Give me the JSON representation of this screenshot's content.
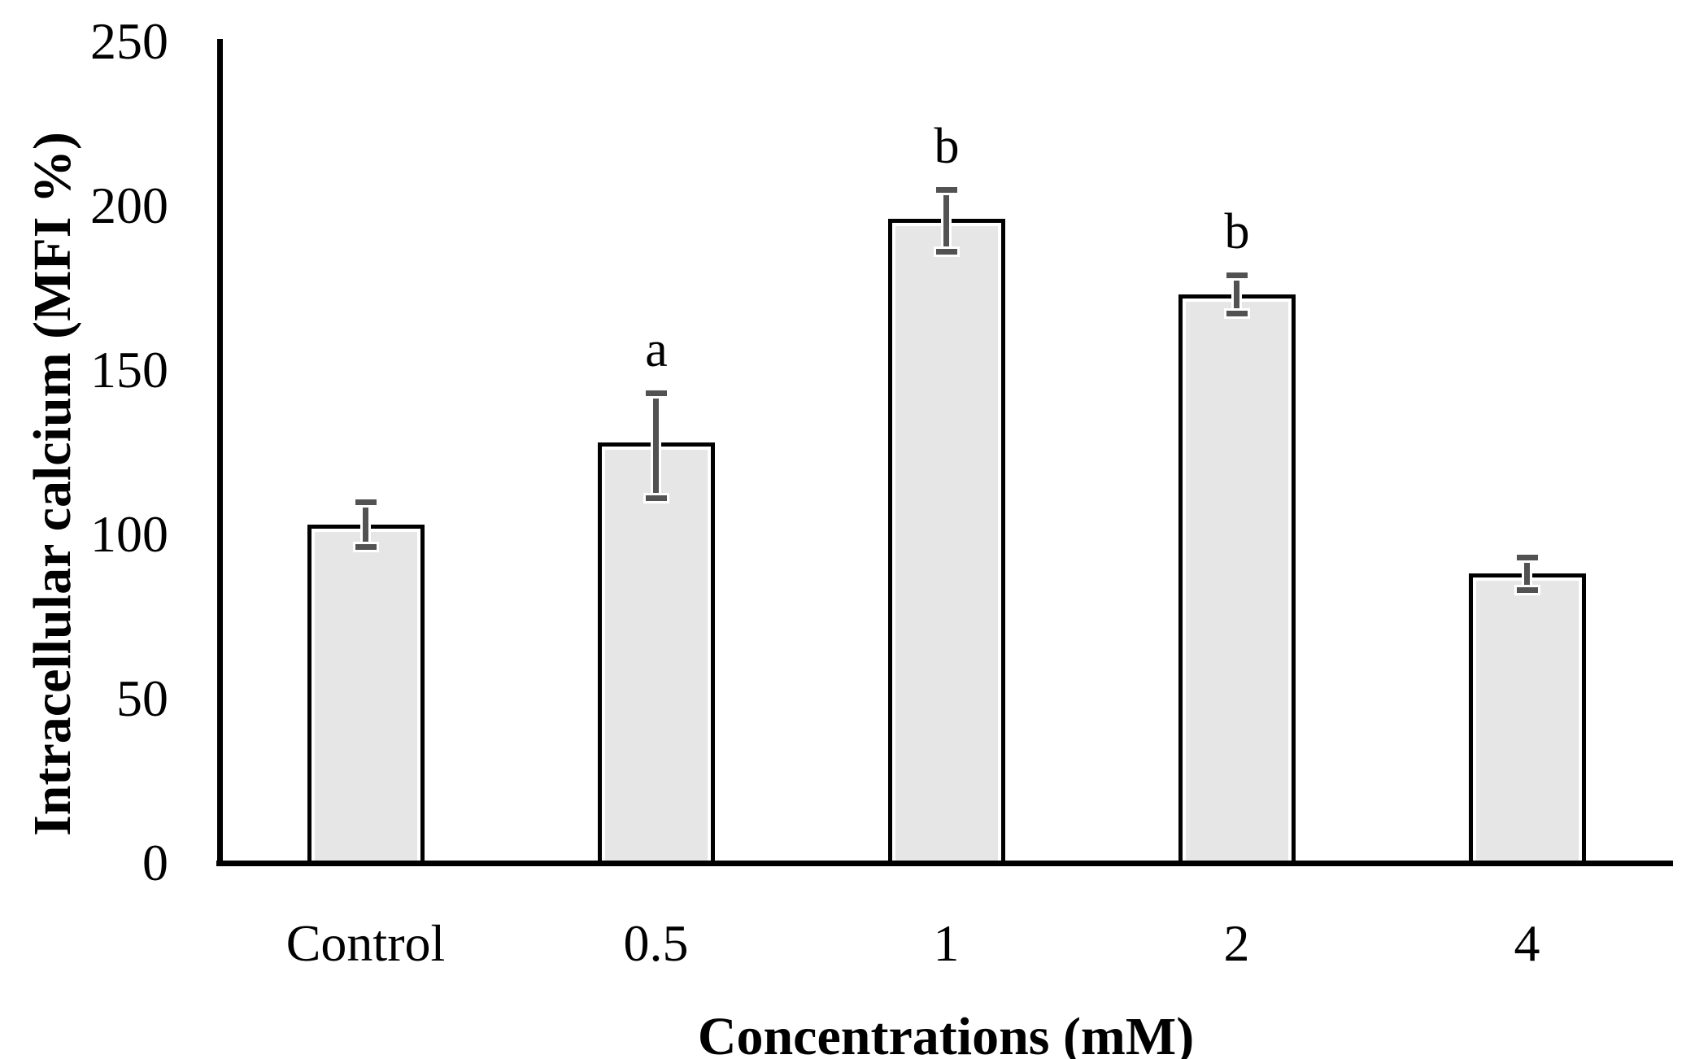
{
  "chart_data": {
    "type": "bar",
    "title": "",
    "xlabel": "Concentrations (mM)",
    "ylabel": "Intracellular calcium (MFI %)",
    "categories": [
      "Control",
      "0.5",
      "1",
      "2",
      "4"
    ],
    "values": [
      103,
      128,
      196,
      173,
      88
    ],
    "error_upper": [
      7,
      15,
      9,
      6,
      5
    ],
    "error_lower": [
      7,
      17,
      10,
      6,
      5
    ],
    "annotations": [
      "",
      "a",
      "b",
      "b",
      ""
    ],
    "ylim": [
      0,
      250
    ],
    "yticks": [
      250,
      200,
      150,
      100,
      50,
      0
    ],
    "grid": false,
    "legend_position": "none",
    "colors": {
      "bar_fill": "#e6e6e6",
      "bar_border": "#000000",
      "error_bar": "#525252",
      "axis": "#000000",
      "text": "#000000",
      "background": "#ffffff"
    }
  }
}
